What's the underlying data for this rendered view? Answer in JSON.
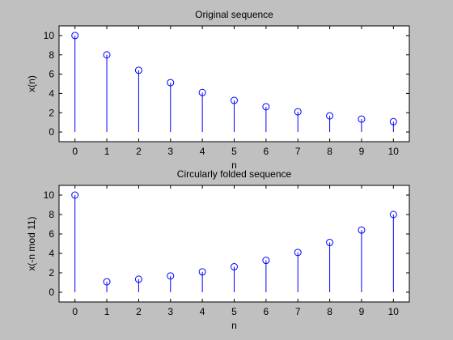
{
  "window": {
    "background": "#c0c0c0"
  },
  "chart_data": [
    {
      "type": "stem",
      "title": "Original sequence",
      "xlabel": "n",
      "ylabel": "x(n)",
      "x": [
        0,
        1,
        2,
        3,
        4,
        5,
        6,
        7,
        8,
        9,
        10
      ],
      "values": [
        10,
        8,
        6.4,
        5.12,
        4.096,
        3.2768,
        2.6214,
        2.0972,
        1.6777,
        1.3422,
        1.0737
      ],
      "xlim": [
        -0.5,
        10.5
      ],
      "ylim": [
        -1,
        11
      ],
      "xticks": [
        "0",
        "1",
        "2",
        "3",
        "4",
        "5",
        "6",
        "7",
        "8",
        "9",
        "10"
      ],
      "yticks": [
        "0",
        "2",
        "4",
        "6",
        "8",
        "10"
      ],
      "grid": false,
      "color": "#0000ff"
    },
    {
      "type": "stem",
      "title": "Circularly folded sequence",
      "xlabel": "n",
      "ylabel": "x(-n mod 11)",
      "x": [
        0,
        1,
        2,
        3,
        4,
        5,
        6,
        7,
        8,
        9,
        10
      ],
      "values": [
        10,
        1.0737,
        1.3422,
        1.6777,
        2.0972,
        2.6214,
        3.2768,
        4.096,
        5.12,
        6.4,
        8
      ],
      "xlim": [
        -0.5,
        10.5
      ],
      "ylim": [
        -1,
        11
      ],
      "xticks": [
        "0",
        "1",
        "2",
        "3",
        "4",
        "5",
        "6",
        "7",
        "8",
        "9",
        "10"
      ],
      "yticks": [
        "0",
        "2",
        "4",
        "6",
        "8",
        "10"
      ],
      "grid": false,
      "color": "#0000ff"
    }
  ]
}
